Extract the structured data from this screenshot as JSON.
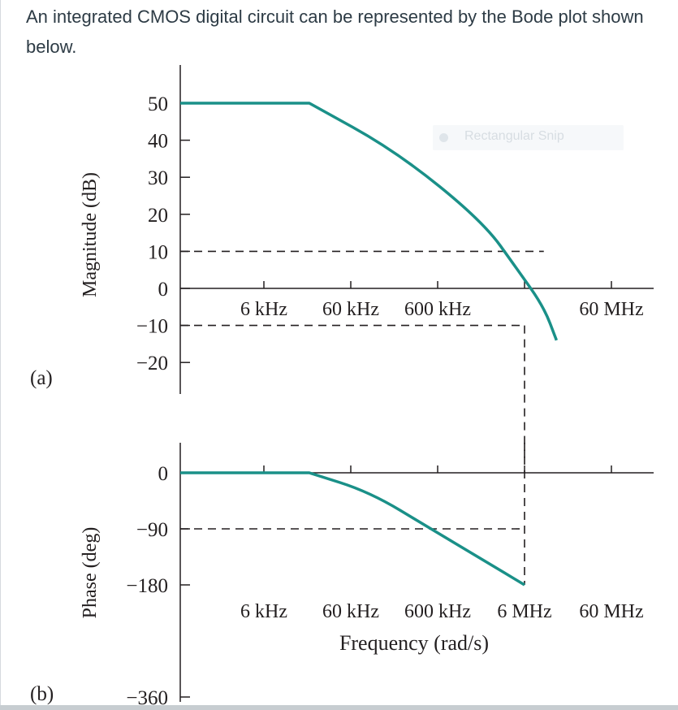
{
  "question": {
    "text": "An integrated CMOS digital circuit can be represented by the Bode plot shown below."
  },
  "snip_overlay": {
    "label": "Rectangular Snip"
  },
  "colors": {
    "curve": "#1a9088",
    "axis": "#231f20",
    "text": "#2d3b45"
  },
  "chart_data": [
    {
      "panel_label": "(a)",
      "type": "line",
      "ylabel": "Magnitude (dB)",
      "yticks": [
        50,
        40,
        30,
        20,
        10,
        0,
        -10,
        -20
      ],
      "ytick_labels": [
        "50",
        "40",
        "30",
        "20",
        "10",
        "0",
        "−10",
        "−20"
      ],
      "ylim": [
        -28,
        60
      ],
      "x_scale": "log",
      "xticks": [
        6000,
        60000,
        600000,
        6000000,
        60000000
      ],
      "xtick_labels": [
        "6 kHz",
        "60 kHz",
        "600 kHz",
        "",
        "60 MHz"
      ],
      "xlim": [
        600,
        100000000
      ],
      "grid": false,
      "series": [
        {
          "x": [
            600,
            20000,
            200000,
            2000000,
            5000000,
            10000000,
            14000000
          ],
          "y": [
            50,
            50,
            37,
            18,
            5,
            -5,
            -14
          ]
        }
      ],
      "reference_lines": [
        {
          "type": "horizontal",
          "y": 10,
          "x_to": 10000000
        },
        {
          "type": "horizontal",
          "y": -10,
          "x_to": 6000000
        },
        {
          "type": "vertical",
          "x": 6000000,
          "y_from": -10
        }
      ]
    },
    {
      "panel_label": "(b)",
      "type": "line",
      "ylabel": "Phase (deg)",
      "xlabel": "Frequency (rad/s)",
      "yticks": [
        0,
        -90,
        -180,
        -360
      ],
      "ytick_labels": [
        "0",
        "−90",
        "−180",
        "−360"
      ],
      "ylim": [
        -360,
        32
      ],
      "x_scale": "log",
      "xticks": [
        6000,
        60000,
        600000,
        6000000,
        60000000
      ],
      "xtick_labels": [
        "6 kHz",
        "60 kHz",
        "600 kHz",
        "6 MHz",
        "60 MHz"
      ],
      "xlim": [
        600,
        100000000
      ],
      "grid": false,
      "series": [
        {
          "x": [
            600,
            20000,
            100000,
            500000,
            2000000,
            6000000
          ],
          "y": [
            0,
            0,
            -31,
            -90,
            -140,
            -180
          ]
        }
      ],
      "reference_lines": [
        {
          "type": "horizontal",
          "y": -90,
          "x_to": 6000000
        },
        {
          "type": "vertical",
          "x": 6000000,
          "y_to": -180
        }
      ]
    }
  ]
}
